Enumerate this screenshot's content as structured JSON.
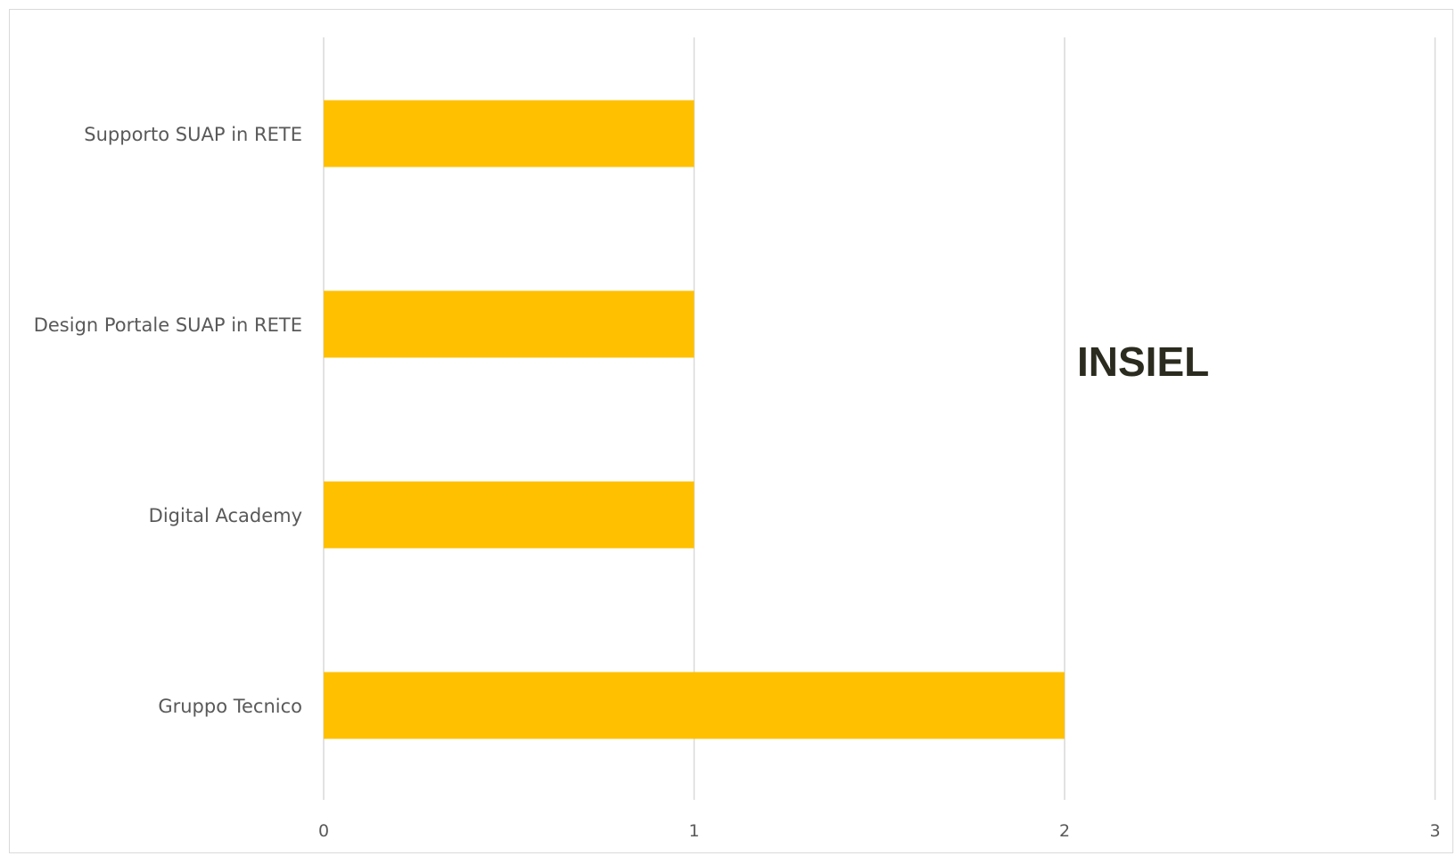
{
  "chart_data": {
    "type": "bar",
    "orientation": "horizontal",
    "categories": [
      "Supporto SUAP in RETE",
      "Design Portale SUAP in RETE",
      "Digital Academy",
      "Gruppo Tecnico"
    ],
    "values": [
      1,
      1,
      1,
      2
    ],
    "title": "",
    "xlabel": "",
    "ylabel": "",
    "xlim": [
      0,
      3
    ],
    "xticks": [
      "0",
      "1",
      "2",
      "3"
    ],
    "grid": true,
    "legend": "none",
    "annotation": "INSIEL",
    "bar_color": "#FFC000",
    "grid_color": "#d9d9d9"
  }
}
